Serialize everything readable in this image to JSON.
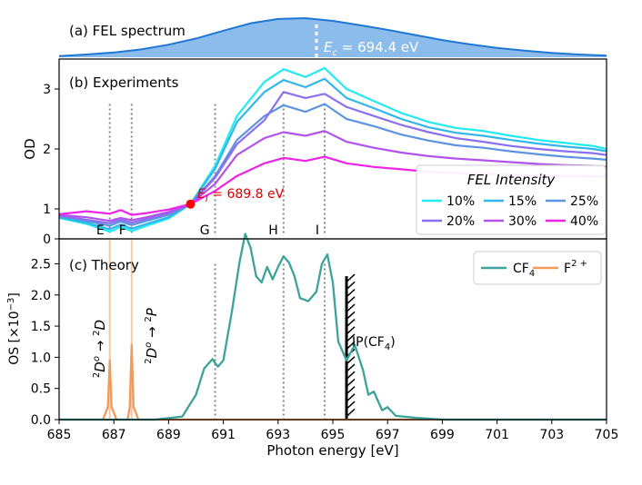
{
  "panels": {
    "a": {
      "label": "(a) FEL spectrum",
      "center_label": "E",
      "center_sub": "c",
      "center_value": " = 694.4 eV",
      "center_ev": 694.4
    },
    "b": {
      "label": "(b) Experiments",
      "ylabel": "OD",
      "crossing_label": "E",
      "crossing_sub": "I",
      "crossing_value": " = 689.8 eV",
      "crossing_ev": 689.8,
      "crossing_od": 1.08,
      "legend_title": "FEL Intensity"
    },
    "c": {
      "label": "(c) Theory",
      "ylabel": "OS [×10",
      "ylabel_exp": "−3",
      "ylabel_end": "]",
      "ip_label": "IP(CF",
      "ip_sub": "4",
      "ip_end": ")",
      "ip_ev": 695.5,
      "transition1": {
        "a": "2",
        "b": "D",
        "c": "o",
        "arrow": " → ",
        "d": "2",
        "e": "D"
      },
      "transition2": {
        "a": "2",
        "b": "D",
        "c": "o",
        "arrow": " → ",
        "d": "2",
        "e": "P"
      }
    }
  },
  "markers": [
    {
      "label": "E",
      "ev": 686.85
    },
    {
      "label": "F",
      "ev": 687.65
    },
    {
      "label": "G",
      "ev": 690.7
    },
    {
      "label": "H",
      "ev": 693.2
    },
    {
      "label": "I",
      "ev": 694.7
    }
  ],
  "chart_data": [
    {
      "type": "area",
      "title": "(a) FEL spectrum",
      "x": [
        685,
        686,
        687,
        688,
        689,
        690,
        691,
        692,
        693,
        694,
        695,
        696,
        697,
        698,
        699,
        700,
        701,
        702,
        703,
        704,
        705
      ],
      "values": [
        0.03,
        0.07,
        0.12,
        0.2,
        0.32,
        0.48,
        0.68,
        0.87,
        0.98,
        1.0,
        0.93,
        0.82,
        0.7,
        0.57,
        0.44,
        0.33,
        0.24,
        0.17,
        0.11,
        0.07,
        0.04
      ],
      "color": "#1f77d4",
      "fill": "#8cbcec"
    },
    {
      "type": "line",
      "title": "(b) Experiments",
      "xlabel": "Photon energy [eV]",
      "ylabel": "OD",
      "ylim": [
        0.5,
        3.5
      ],
      "yticks": [
        1,
        2,
        3
      ],
      "x": [
        685,
        686,
        686.85,
        687.25,
        687.65,
        688.2,
        689,
        689.8,
        690.7,
        691.5,
        692.5,
        693.2,
        694,
        694.7,
        695.5,
        696.5,
        697.5,
        698.5,
        699.5,
        700.5,
        701.5,
        702.5,
        703.5,
        704.5,
        705
      ],
      "series": [
        {
          "name": "10%",
          "color": "#22eaf0",
          "values": [
            0.85,
            0.75,
            0.62,
            0.7,
            0.63,
            0.72,
            0.84,
            1.08,
            1.72,
            2.55,
            3.12,
            3.33,
            3.2,
            3.35,
            3.0,
            2.8,
            2.6,
            2.45,
            2.35,
            2.3,
            2.22,
            2.15,
            2.1,
            2.05,
            2.0
          ]
        },
        {
          "name": "15%",
          "color": "#31b6ea",
          "values": [
            0.86,
            0.77,
            0.66,
            0.74,
            0.67,
            0.75,
            0.86,
            1.08,
            1.67,
            2.45,
            2.95,
            3.15,
            3.03,
            3.17,
            2.85,
            2.68,
            2.5,
            2.36,
            2.27,
            2.22,
            2.15,
            2.09,
            2.04,
            2.0,
            1.96
          ]
        },
        {
          "name": "25%",
          "color": "#5c93e3",
          "values": [
            0.88,
            0.8,
            0.72,
            0.79,
            0.73,
            0.8,
            0.9,
            1.08,
            1.55,
            2.15,
            2.55,
            2.73,
            2.62,
            2.75,
            2.5,
            2.38,
            2.24,
            2.14,
            2.06,
            2.02,
            1.96,
            1.91,
            1.87,
            1.84,
            1.82
          ]
        },
        {
          "name": "20%",
          "color": "#8a6ff0",
          "values": [
            0.89,
            0.82,
            0.76,
            0.82,
            0.77,
            0.83,
            0.93,
            1.08,
            1.52,
            2.08,
            2.48,
            2.95,
            2.85,
            2.92,
            2.7,
            2.55,
            2.4,
            2.28,
            2.18,
            2.12,
            2.05,
            2.0,
            1.96,
            1.93,
            1.9
          ]
        },
        {
          "name": "30%",
          "color": "#b153ec",
          "values": [
            0.9,
            0.86,
            0.8,
            0.85,
            0.81,
            0.86,
            0.95,
            1.08,
            1.42,
            1.9,
            2.18,
            2.28,
            2.22,
            2.3,
            2.12,
            2.02,
            1.94,
            1.88,
            1.84,
            1.81,
            1.78,
            1.75,
            1.73,
            1.72,
            1.7
          ]
        },
        {
          "name": "40%",
          "color": "#ee22e8",
          "values": [
            0.91,
            0.96,
            0.92,
            0.98,
            0.9,
            0.93,
            0.99,
            1.08,
            1.3,
            1.55,
            1.76,
            1.85,
            1.8,
            1.87,
            1.76,
            1.7,
            1.66,
            1.62,
            1.6,
            1.58,
            1.57,
            1.55,
            1.55,
            1.54,
            1.54
          ]
        }
      ]
    },
    {
      "type": "line",
      "title": "(c) Theory",
      "xlabel": "Photon energy [eV]",
      "ylabel": "OS [×10^-3]",
      "xlim": [
        685,
        705
      ],
      "ylim": [
        0,
        2.9
      ],
      "xticks": [
        685,
        687,
        689,
        691,
        693,
        695,
        697,
        699,
        701,
        703,
        705
      ],
      "yticks": [
        0.0,
        0.5,
        1.0,
        1.5,
        2.0,
        2.5
      ],
      "series": [
        {
          "name": "CF4",
          "color": "#3aa39a",
          "x": [
            685,
            688.5,
            689.5,
            690,
            690.3,
            690.6,
            690.8,
            691.0,
            691.3,
            691.6,
            691.8,
            692.0,
            692.2,
            692.4,
            692.6,
            692.8,
            693.0,
            693.2,
            693.4,
            693.6,
            693.8,
            694.1,
            694.4,
            694.6,
            694.8,
            695.0,
            695.2,
            695.5,
            695.8,
            696.1,
            696.3,
            696.5,
            696.8,
            697.0,
            697.3,
            698,
            699,
            705
          ],
          "values": [
            0,
            0,
            0.05,
            0.4,
            0.82,
            0.97,
            0.85,
            0.95,
            1.7,
            2.55,
            2.98,
            2.75,
            2.3,
            2.2,
            2.45,
            2.25,
            2.45,
            2.62,
            2.52,
            2.3,
            1.95,
            1.9,
            2.05,
            2.5,
            2.65,
            2.2,
            1.25,
            0.95,
            1.2,
            0.8,
            0.4,
            0.45,
            0.15,
            0.2,
            0.06,
            0.03,
            0,
            0
          ]
        },
        {
          "name": "F2+",
          "color": "#f29a5a",
          "x": [
            685,
            686.6,
            686.78,
            686.85,
            686.92,
            687.1,
            687.5,
            687.58,
            687.65,
            687.72,
            687.9,
            705
          ],
          "values": [
            0,
            0,
            0.2,
            0.95,
            0.2,
            0,
            0,
            0.2,
            1.2,
            0.2,
            0,
            0
          ]
        }
      ]
    }
  ],
  "xaxis": {
    "label": "Photon energy [eV]"
  },
  "legend_c": {
    "cf4": "CF",
    "cf4_sub": "4",
    "f2": "F",
    "f2_sup": "2 +"
  }
}
